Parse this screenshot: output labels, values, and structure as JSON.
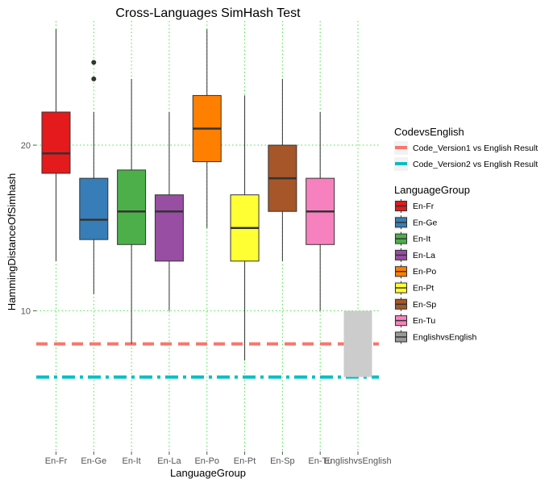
{
  "chart_data": {
    "type": "box",
    "title": "Cross-Languages SimHash Test",
    "xlabel": "LanguageGroup",
    "ylabel": "HammingDistanceOfSimhash",
    "ylim": [
      1.5,
      27.5
    ],
    "yticks": [
      10,
      20
    ],
    "grid": true,
    "categories": [
      "En-Fr",
      "En-Ge",
      "En-It",
      "En-La",
      "En-Po",
      "En-Pt",
      "En-Sp",
      "En-Tu",
      "EnglishvsEnglish"
    ],
    "boxes": [
      {
        "group": "En-Fr",
        "min": 13,
        "q1": 18.3,
        "median": 19.5,
        "q3": 22,
        "max": 27,
        "outliers": []
      },
      {
        "group": "En-Ge",
        "min": 11,
        "q1": 14.3,
        "median": 15.5,
        "q3": 18,
        "max": 22,
        "outliers": [
          24,
          25
        ]
      },
      {
        "group": "En-It",
        "min": 8,
        "q1": 14,
        "median": 16,
        "q3": 18.5,
        "max": 24,
        "outliers": []
      },
      {
        "group": "En-La",
        "min": 10,
        "q1": 13,
        "median": 16,
        "q3": 17,
        "max": 22,
        "outliers": []
      },
      {
        "group": "En-Po",
        "min": 15,
        "q1": 19,
        "median": 21,
        "q3": 23,
        "max": 27,
        "outliers": []
      },
      {
        "group": "En-Pt",
        "min": 7,
        "q1": 13,
        "median": 15,
        "q3": 17,
        "max": 23,
        "outliers": []
      },
      {
        "group": "En-Sp",
        "min": 13,
        "q1": 16,
        "median": 18,
        "q3": 20,
        "max": 24,
        "outliers": []
      },
      {
        "group": "En-Tu",
        "min": 10,
        "q1": 14,
        "median": 16,
        "q3": 18,
        "max": 22,
        "outliers": []
      },
      {
        "group": "EnglishvsEnglish",
        "min": 6,
        "q1": 6,
        "median": 8,
        "q3": 10,
        "max": 10,
        "outliers": []
      }
    ],
    "hlines": [
      {
        "name": "Code_Version1 vs English Result",
        "y": 8,
        "color": "#F8766D",
        "dash": "dashed"
      },
      {
        "name": "Code_Version2 vs English Result",
        "y": 6,
        "color": "#00BFC4",
        "dash": "dotdash"
      }
    ],
    "legends": [
      {
        "title": "CodevsEnglish",
        "entries": [
          "Code_Version1 vs English Result",
          "Code_Version2 vs English Result"
        ]
      },
      {
        "title": "LanguageGroup",
        "entries": [
          "En-Fr",
          "En-Ge",
          "En-It",
          "En-La",
          "En-Po",
          "En-Pt",
          "En-Sp",
          "En-Tu",
          "EnglishvsEnglish"
        ]
      }
    ],
    "legend_position": "right",
    "colors": {
      "En-Fr": "#E41A1C",
      "En-Ge": "#377EB8",
      "En-It": "#4DAF4A",
      "En-La": "#984EA3",
      "En-Po": "#FF7F00",
      "En-Pt": "#FFFF33",
      "En-Sp": "#A65628",
      "En-Tu": "#F781BF",
      "EnglishvsEnglish": "#999999"
    }
  }
}
